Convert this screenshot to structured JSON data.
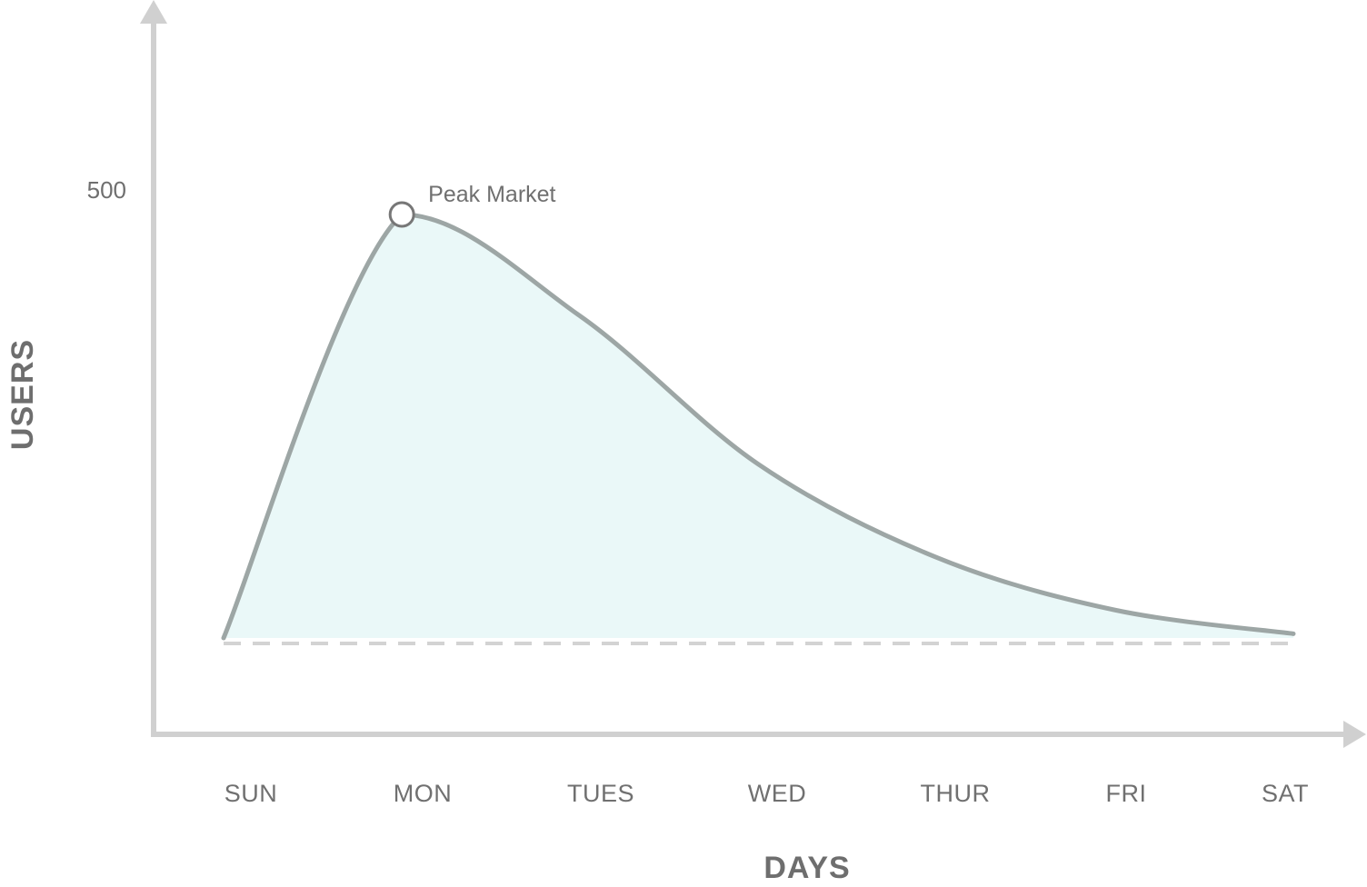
{
  "chart_data": {
    "type": "area",
    "categories": [
      "SUN",
      "MON",
      "TUES",
      "WED",
      "THUR",
      "FRI",
      "SAT"
    ],
    "values": [
      0,
      500,
      380,
      205,
      95,
      33,
      5
    ],
    "xlabel": "DAYS",
    "ylabel": "USERS",
    "yticks": [
      500
    ],
    "annotation": {
      "text": "Peak Market",
      "category": "MON",
      "value": 500
    },
    "baseline": 0,
    "grid": false,
    "legend": "none",
    "colors": {
      "axis": "#d0d0d0",
      "line": "#9da6a5",
      "fill": "#eaf8f8",
      "baseline": "#d3d3d3",
      "text": "#707070"
    }
  }
}
